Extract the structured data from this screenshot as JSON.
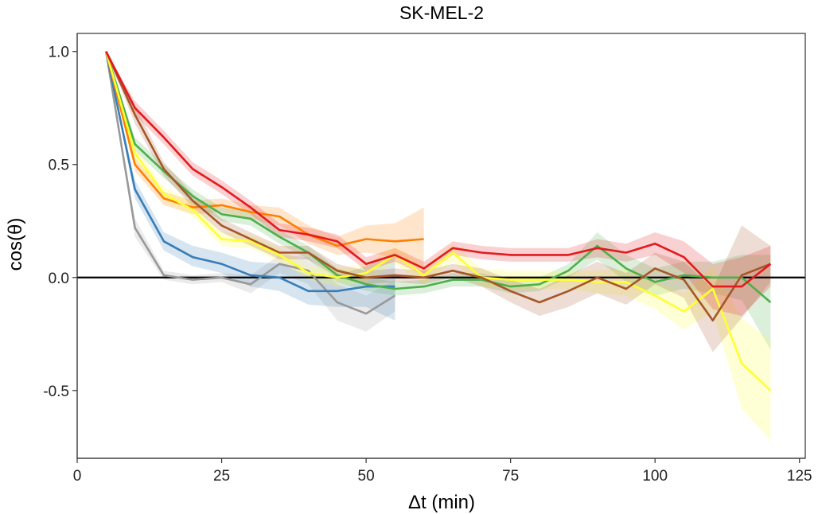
{
  "chart_data": {
    "type": "line",
    "title": "SK-MEL-2",
    "xlabel": "Δt (min)",
    "ylabel": "cos(θ)",
    "xlim": [
      0,
      126
    ],
    "ylim": [
      -0.8,
      1.08
    ],
    "xticks": [
      0,
      25,
      50,
      75,
      100,
      125
    ],
    "xtick_labels": [
      "0",
      "25",
      "50",
      "75",
      "100",
      "125"
    ],
    "yticks": [
      -0.5,
      0.0,
      0.5,
      1.0
    ],
    "ytick_labels": [
      "-0.5",
      "0.0",
      "0.5",
      "1.0"
    ],
    "reference_line_y": 0,
    "grid": false,
    "legend": "none",
    "series": [
      {
        "color": "#999999",
        "x": [
          5,
          10,
          15,
          20,
          25,
          30,
          35,
          40,
          45,
          50,
          55
        ],
        "y": [
          1.0,
          0.22,
          0.01,
          -0.01,
          0.0,
          -0.03,
          0.06,
          0.03,
          -0.11,
          -0.16,
          -0.08
        ],
        "lower": [
          1.0,
          0.18,
          -0.01,
          -0.03,
          -0.02,
          -0.07,
          0.02,
          -0.03,
          -0.19,
          -0.24,
          -0.15
        ],
        "upper": [
          1.0,
          0.26,
          0.03,
          0.01,
          0.02,
          0.01,
          0.1,
          0.09,
          -0.03,
          -0.08,
          -0.01
        ]
      },
      {
        "color": "#377EB8",
        "x": [
          5,
          10,
          15,
          20,
          25,
          30,
          35,
          40,
          45,
          50,
          55
        ],
        "y": [
          1.0,
          0.39,
          0.16,
          0.09,
          0.06,
          0.01,
          0.0,
          -0.06,
          -0.06,
          -0.04,
          -0.04
        ],
        "lower": [
          1.0,
          0.35,
          0.12,
          0.05,
          0.02,
          -0.04,
          -0.06,
          -0.12,
          -0.13,
          -0.13,
          -0.19
        ],
        "upper": [
          1.0,
          0.43,
          0.2,
          0.14,
          0.11,
          0.07,
          0.06,
          0.01,
          0.01,
          0.05,
          0.11
        ]
      },
      {
        "color": "#FF7F00",
        "x": [
          5,
          10,
          15,
          20,
          25,
          30,
          35,
          40,
          45,
          50,
          55,
          60
        ],
        "y": [
          1.0,
          0.5,
          0.35,
          0.31,
          0.32,
          0.29,
          0.27,
          0.19,
          0.14,
          0.17,
          0.16,
          0.17
        ],
        "lower": [
          1.0,
          0.47,
          0.32,
          0.28,
          0.29,
          0.26,
          0.23,
          0.15,
          0.1,
          0.11,
          0.09,
          0.04
        ],
        "upper": [
          1.0,
          0.53,
          0.38,
          0.34,
          0.35,
          0.32,
          0.31,
          0.23,
          0.18,
          0.23,
          0.24,
          0.31
        ]
      },
      {
        "color": "#4DAF4A",
        "x": [
          5,
          10,
          15,
          20,
          25,
          30,
          35,
          40,
          45,
          50,
          55,
          60,
          65,
          70,
          75,
          80,
          85,
          90,
          95,
          100,
          105,
          110,
          115,
          120
        ],
        "y": [
          1.0,
          0.59,
          0.47,
          0.36,
          0.28,
          0.26,
          0.18,
          0.11,
          0.01,
          -0.03,
          -0.05,
          -0.04,
          -0.01,
          -0.01,
          -0.04,
          -0.03,
          0.03,
          0.14,
          0.04,
          -0.02,
          0.01,
          0.0,
          0.0,
          -0.11
        ],
        "lower": [
          1.0,
          0.56,
          0.44,
          0.33,
          0.25,
          0.23,
          0.15,
          0.08,
          -0.02,
          -0.06,
          -0.08,
          -0.07,
          -0.04,
          -0.04,
          -0.07,
          -0.06,
          0.0,
          0.08,
          -0.02,
          -0.08,
          -0.05,
          -0.07,
          -0.1,
          -0.32
        ],
        "upper": [
          1.0,
          0.62,
          0.5,
          0.39,
          0.31,
          0.29,
          0.21,
          0.14,
          0.04,
          0.0,
          -0.02,
          -0.01,
          0.02,
          0.02,
          -0.01,
          0.0,
          0.06,
          0.2,
          0.1,
          0.04,
          0.07,
          0.07,
          0.1,
          0.1
        ]
      },
      {
        "color": "#FFFF33",
        "x": [
          5,
          10,
          15,
          20,
          25,
          30,
          35,
          40,
          45,
          50,
          55,
          60,
          65,
          70,
          75,
          80,
          85,
          90,
          95,
          100,
          105,
          110,
          115,
          120
        ],
        "y": [
          1.0,
          0.55,
          0.37,
          0.3,
          0.17,
          0.16,
          0.1,
          0.02,
          0.0,
          0.02,
          0.1,
          0.01,
          0.11,
          0.0,
          -0.01,
          -0.01,
          -0.01,
          -0.02,
          -0.02,
          -0.08,
          -0.15,
          -0.05,
          -0.38,
          -0.5
        ],
        "lower": [
          1.0,
          0.52,
          0.34,
          0.27,
          0.14,
          0.13,
          0.07,
          -0.01,
          -0.04,
          -0.02,
          0.06,
          -0.03,
          0.07,
          -0.04,
          -0.05,
          -0.05,
          -0.05,
          -0.07,
          -0.08,
          -0.14,
          -0.23,
          -0.15,
          -0.58,
          -0.72
        ],
        "upper": [
          1.0,
          0.58,
          0.4,
          0.33,
          0.2,
          0.19,
          0.13,
          0.05,
          0.04,
          0.06,
          0.14,
          0.05,
          0.15,
          0.04,
          0.03,
          0.03,
          0.03,
          0.03,
          0.04,
          -0.02,
          -0.07,
          0.05,
          -0.18,
          -0.28
        ]
      },
      {
        "color": "#A65628",
        "x": [
          5,
          10,
          15,
          20,
          25,
          30,
          35,
          40,
          45,
          50,
          55,
          60,
          65,
          70,
          75,
          80,
          85,
          90,
          95,
          100,
          105,
          110,
          115,
          120
        ],
        "y": [
          1.0,
          0.72,
          0.48,
          0.34,
          0.23,
          0.17,
          0.11,
          0.11,
          0.03,
          0.0,
          0.01,
          0.0,
          0.03,
          0.0,
          -0.06,
          -0.11,
          -0.06,
          0.0,
          -0.05,
          0.04,
          -0.01,
          -0.19,
          0.01,
          0.06
        ],
        "lower": [
          1.0,
          0.68,
          0.45,
          0.31,
          0.2,
          0.14,
          0.08,
          0.08,
          0.0,
          -0.03,
          -0.02,
          -0.03,
          0.0,
          -0.04,
          -0.11,
          -0.17,
          -0.13,
          -0.07,
          -0.12,
          -0.03,
          -0.09,
          -0.33,
          -0.18,
          -0.02
        ],
        "upper": [
          1.0,
          0.76,
          0.51,
          0.37,
          0.26,
          0.2,
          0.14,
          0.14,
          0.06,
          0.03,
          0.04,
          0.03,
          0.06,
          0.04,
          -0.01,
          -0.05,
          0.01,
          0.07,
          0.02,
          0.11,
          0.07,
          -0.05,
          0.23,
          0.14
        ]
      },
      {
        "color": "#E41A1C",
        "x": [
          5,
          10,
          15,
          20,
          25,
          30,
          35,
          40,
          45,
          50,
          55,
          60,
          65,
          70,
          75,
          80,
          85,
          90,
          95,
          100,
          105,
          110,
          115,
          120
        ],
        "y": [
          1.0,
          0.75,
          0.62,
          0.48,
          0.4,
          0.31,
          0.21,
          0.19,
          0.16,
          0.06,
          0.1,
          0.04,
          0.13,
          0.11,
          0.1,
          0.1,
          0.1,
          0.13,
          0.11,
          0.15,
          0.09,
          -0.04,
          -0.04,
          0.06
        ],
        "lower": [
          1.0,
          0.72,
          0.59,
          0.45,
          0.37,
          0.28,
          0.18,
          0.16,
          0.13,
          0.03,
          0.07,
          0.01,
          0.1,
          0.08,
          0.07,
          0.07,
          0.07,
          0.09,
          0.07,
          0.1,
          0.02,
          -0.14,
          -0.17,
          -0.04
        ],
        "upper": [
          1.0,
          0.78,
          0.65,
          0.51,
          0.43,
          0.34,
          0.24,
          0.22,
          0.19,
          0.09,
          0.13,
          0.07,
          0.16,
          0.14,
          0.13,
          0.13,
          0.13,
          0.17,
          0.15,
          0.2,
          0.16,
          0.06,
          0.09,
          0.14
        ]
      }
    ]
  }
}
